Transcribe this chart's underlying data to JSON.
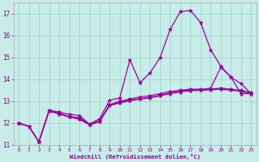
{
  "bg_color": "#c8ece8",
  "grid_color": "#a8d8d4",
  "line_color": "#990099",
  "marker_color": "#990099",
  "xlabel": "Windchill (Refroidissement éolien,°C)",
  "xlabel_color": "#880088",
  "tick_color": "#880088",
  "xlim": [
    -0.5,
    23.5
  ],
  "ylim": [
    11,
    17.5
  ],
  "xticks": [
    0,
    1,
    2,
    3,
    4,
    5,
    6,
    7,
    8,
    9,
    10,
    11,
    12,
    13,
    14,
    15,
    16,
    17,
    18,
    19,
    20,
    21,
    22,
    23
  ],
  "yticks": [
    11,
    12,
    13,
    14,
    15,
    16,
    17
  ],
  "series": [
    [
      12.0,
      11.85,
      11.15,
      12.6,
      12.5,
      12.4,
      12.35,
      11.95,
      12.2,
      13.05,
      13.15,
      14.9,
      13.85,
      14.3,
      15.0,
      16.3,
      17.1,
      17.15,
      16.6,
      15.35,
      14.6,
      14.1,
      13.8,
      13.35
    ],
    [
      12.0,
      11.85,
      11.15,
      12.55,
      12.45,
      12.3,
      12.25,
      11.95,
      12.1,
      12.85,
      13.0,
      13.1,
      13.2,
      13.25,
      13.35,
      13.45,
      13.5,
      13.55,
      13.55,
      13.55,
      13.6,
      13.55,
      13.5,
      13.4
    ],
    [
      12.0,
      11.85,
      11.15,
      12.55,
      12.42,
      12.28,
      12.2,
      11.93,
      12.08,
      12.82,
      12.95,
      13.05,
      13.12,
      13.18,
      13.28,
      13.38,
      13.47,
      13.52,
      13.52,
      13.6,
      14.55,
      14.1,
      13.35,
      13.35
    ],
    [
      12.0,
      11.85,
      11.15,
      12.55,
      12.42,
      12.28,
      12.18,
      11.92,
      12.06,
      12.8,
      12.92,
      13.02,
      13.1,
      13.15,
      13.25,
      13.35,
      13.42,
      13.48,
      13.5,
      13.52,
      13.55,
      13.5,
      13.45,
      13.35
    ]
  ]
}
